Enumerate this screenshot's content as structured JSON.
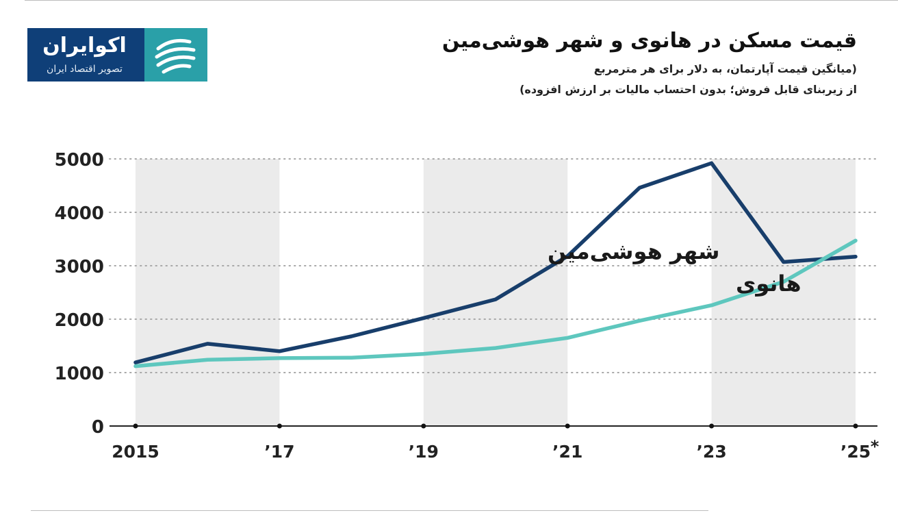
{
  "brand": {
    "name": "اکوایران",
    "tagline": "تصویر اقتصاد ایران",
    "colors": {
      "logo_bg": "#0f3f78",
      "logo_mark": "#2aa0a8"
    }
  },
  "header": {
    "title": "قیمت مسکن در هانوی و شهر هوشی‌مین",
    "subtitle_line1": "(میانگین قیمت آپارتمان، به دلار برای هر مترمربع",
    "subtitle_line2": "از زیربنای قابل فروش؛ بدون احتساب مالیات بر ارزش افزوده)"
  },
  "chart_data": {
    "type": "line",
    "x": [
      2015,
      2016,
      2017,
      2018,
      2019,
      2020,
      2021,
      2022,
      2023,
      2024,
      2025
    ],
    "x_tick_values": [
      2015,
      2017,
      2019,
      2021,
      2023,
      2025
    ],
    "x_tick_labels": [
      "2015",
      "’17",
      "’19",
      "’21",
      "’23",
      "’25"
    ],
    "x_footnote_mark": "*",
    "ylim": [
      0,
      5000
    ],
    "y_ticks": [
      0,
      1000,
      2000,
      3000,
      4000,
      5000
    ],
    "y_tick_labels": [
      "0",
      "1000",
      "2000",
      "3000",
      "4000",
      "5000"
    ],
    "grid": "horizontal-dotted",
    "shaded_bands": [
      [
        2015,
        2017
      ],
      [
        2019,
        2021
      ],
      [
        2023,
        2025
      ]
    ],
    "series": [
      {
        "name": "شهر هوشی‌مین",
        "color": "#183e6b",
        "values": [
          1190,
          1540,
          1400,
          1680,
          2020,
          2370,
          3180,
          4460,
          4920,
          3070,
          3170
        ]
      },
      {
        "name": "هانوی",
        "color": "#5ec7be",
        "values": [
          1120,
          1240,
          1270,
          1280,
          1350,
          1460,
          1650,
          1970,
          2260,
          2700,
          3470
        ]
      }
    ]
  }
}
